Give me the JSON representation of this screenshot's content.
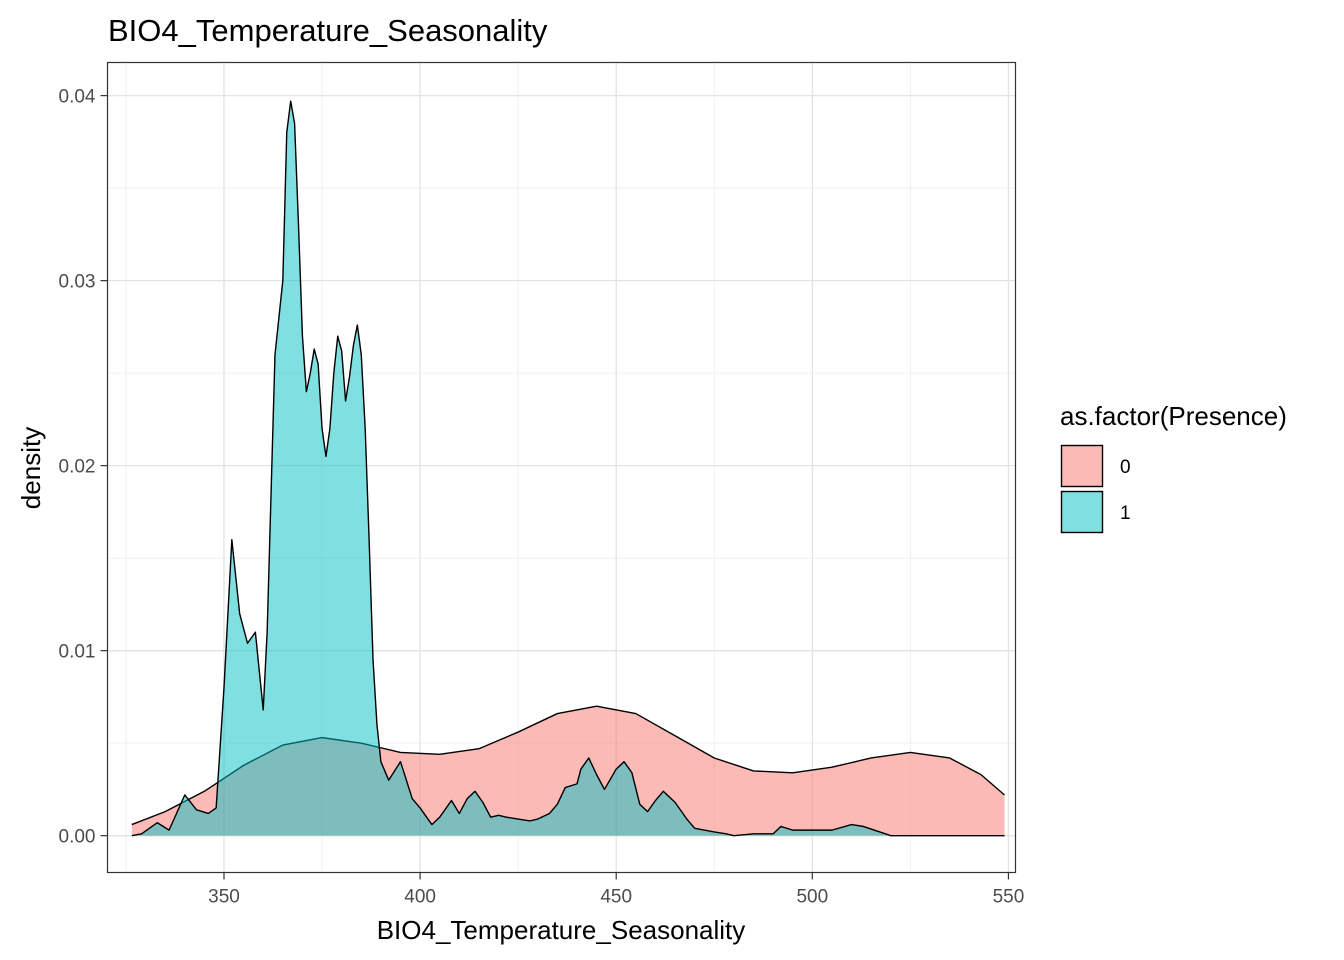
{
  "chart_data": {
    "type": "area",
    "title": "BIO4_Temperature_Seasonality",
    "xlabel": "BIO4_Temperature_Seasonality",
    "ylabel": "density",
    "xlim": [
      320.3,
      551.8
    ],
    "ylim": [
      -0.00199,
      0.04179
    ],
    "x_ticks": [
      350,
      400,
      450,
      500,
      550
    ],
    "x_tick_labels": [
      "350",
      "400",
      "450",
      "500",
      "550"
    ],
    "y_ticks": [
      0.0,
      0.01,
      0.02,
      0.03,
      0.04
    ],
    "y_tick_labels": [
      "0.00",
      "0.01",
      "0.02",
      "0.03",
      "0.04"
    ],
    "grid": true,
    "legend": {
      "title": "as.factor(Presence)",
      "position": "right",
      "entries": [
        "0",
        "1"
      ]
    },
    "series": [
      {
        "name": "0",
        "color": "#F8766D",
        "opacity": 0.5,
        "x": [
          326.5,
          335,
          345,
          355,
          365,
          375,
          385,
          395,
          405,
          415,
          425,
          435,
          445,
          455,
          465,
          475,
          485,
          495,
          505,
          515,
          525,
          535,
          543,
          549
        ],
        "y": [
          0.0006,
          0.0013,
          0.0024,
          0.0038,
          0.0049,
          0.0053,
          0.005,
          0.0045,
          0.0044,
          0.0047,
          0.0056,
          0.0066,
          0.007,
          0.0066,
          0.0054,
          0.0042,
          0.0035,
          0.0034,
          0.0037,
          0.0042,
          0.0045,
          0.0042,
          0.0033,
          0.0022
        ]
      },
      {
        "name": "1",
        "color": "#00BFC4",
        "opacity": 0.5,
        "x": [
          326.5,
          329,
          333,
          336,
          340,
          343,
          346,
          348,
          350,
          352,
          354,
          356,
          358,
          360,
          361,
          363,
          365,
          366,
          367,
          368,
          369,
          370,
          371,
          372,
          373,
          374,
          375,
          376,
          377,
          378,
          379,
          380,
          381,
          382,
          383,
          384,
          385,
          386,
          387,
          388,
          389,
          390,
          392,
          395,
          398,
          400,
          403,
          405,
          408,
          410,
          412,
          414,
          416,
          418,
          420,
          422,
          425,
          428,
          430,
          433,
          435,
          437,
          440,
          441,
          443,
          445,
          447,
          450,
          452,
          454,
          456,
          458,
          460,
          462,
          465,
          468,
          470,
          475,
          478,
          480,
          485,
          490,
          492,
          495,
          500,
          505,
          510,
          513,
          520,
          530,
          540,
          549
        ],
        "y": [
          0.0,
          0.0001,
          0.0007,
          0.0003,
          0.0022,
          0.0014,
          0.0012,
          0.0015,
          0.008,
          0.016,
          0.012,
          0.0104,
          0.011,
          0.0068,
          0.011,
          0.026,
          0.03,
          0.038,
          0.0397,
          0.0385,
          0.033,
          0.027,
          0.024,
          0.025,
          0.0263,
          0.0255,
          0.022,
          0.0205,
          0.022,
          0.025,
          0.027,
          0.0262,
          0.0235,
          0.0248,
          0.0265,
          0.0276,
          0.026,
          0.022,
          0.016,
          0.0095,
          0.006,
          0.004,
          0.003,
          0.004,
          0.002,
          0.0015,
          0.0006,
          0.001,
          0.0019,
          0.0012,
          0.002,
          0.0024,
          0.0018,
          0.001,
          0.0011,
          0.001,
          0.0009,
          0.0008,
          0.0009,
          0.0012,
          0.0017,
          0.0026,
          0.0028,
          0.0036,
          0.0042,
          0.0033,
          0.0025,
          0.0036,
          0.004,
          0.0034,
          0.0017,
          0.0013,
          0.0019,
          0.0024,
          0.0018,
          0.0009,
          0.0004,
          0.0002,
          0.0001,
          0.0,
          0.0001,
          0.0001,
          0.0005,
          0.0003,
          0.0003,
          0.0003,
          0.0006,
          0.0005,
          0.0,
          0.0,
          0.0,
          0.0
        ]
      }
    ]
  }
}
